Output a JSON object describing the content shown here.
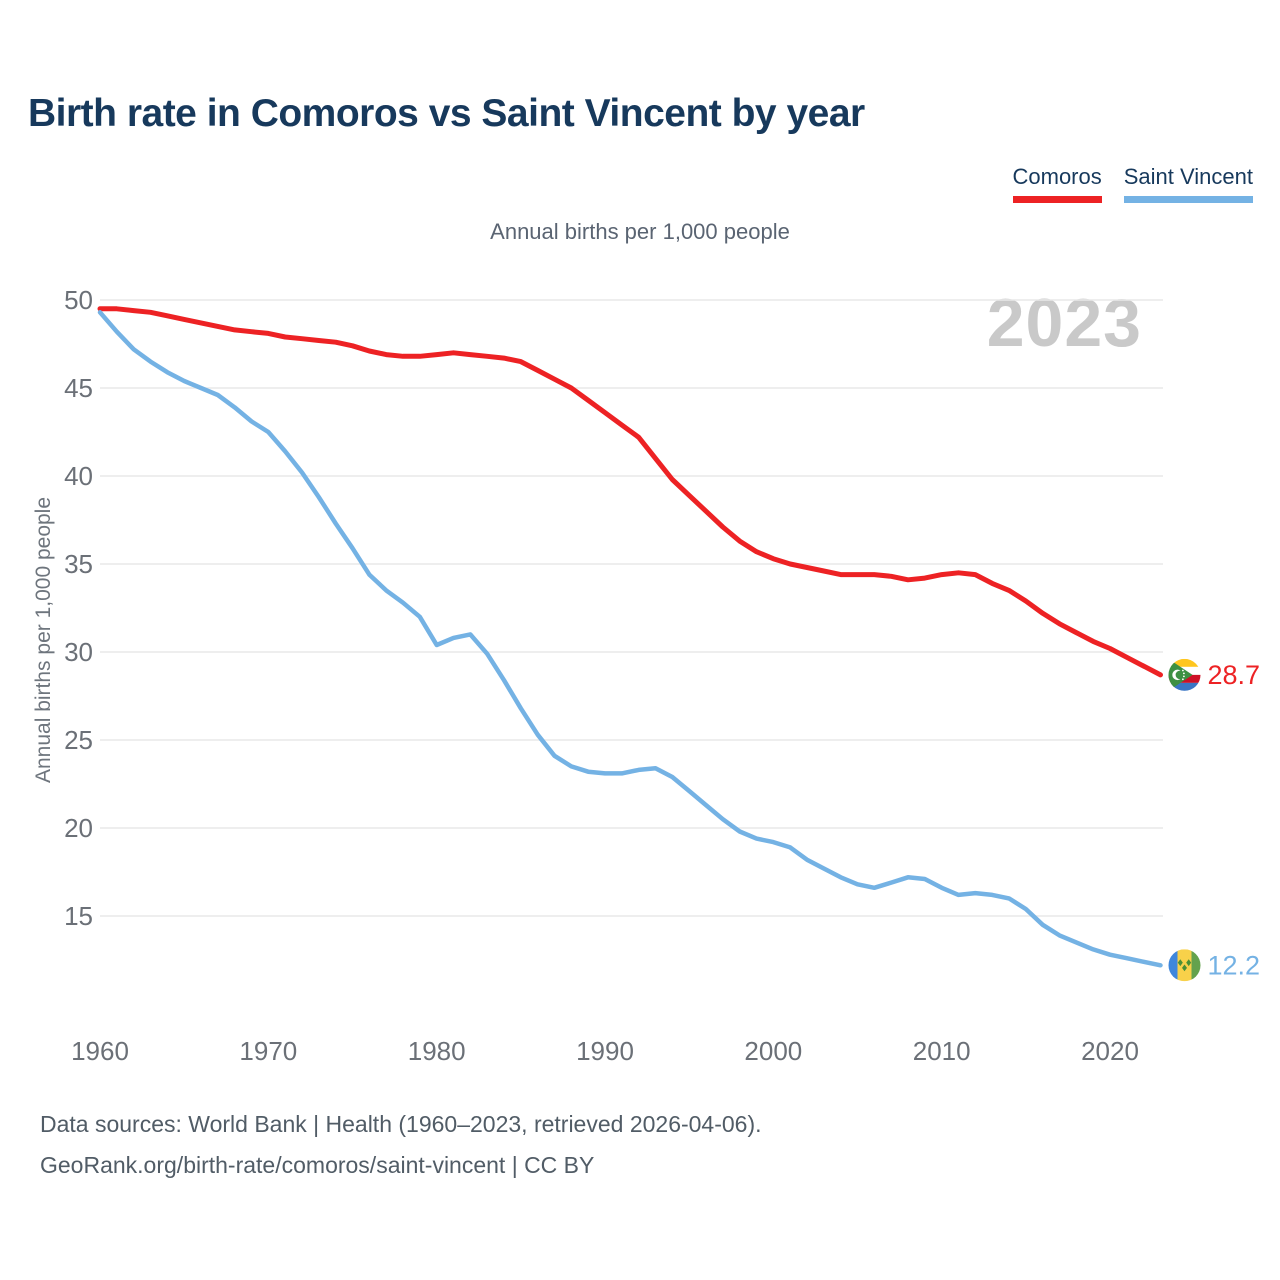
{
  "header": {
    "title": "Birth rate in Comoros vs Saint Vincent by year"
  },
  "legend": [
    {
      "label": "Comoros",
      "color": "#ED2224"
    },
    {
      "label": "Saint Vincent",
      "color": "#74B2E4"
    }
  ],
  "subtitle": "Annual births per 1,000 people",
  "watermark": "2023",
  "chart_data": {
    "type": "line",
    "title": "Annual births per 1,000 people",
    "xlabel": "",
    "ylabel": "Annual births per 1,000 people",
    "x_ticks": [
      1960,
      1970,
      1980,
      1990,
      2000,
      2010,
      2020
    ],
    "y_ticks": [
      15,
      20,
      25,
      30,
      35,
      40,
      45,
      50
    ],
    "xlim": [
      1960,
      2023
    ],
    "ylim": [
      12,
      50
    ],
    "grid": "horizontal",
    "legend_position": "top-right",
    "x": [
      1960,
      1961,
      1962,
      1963,
      1964,
      1965,
      1966,
      1967,
      1968,
      1969,
      1970,
      1971,
      1972,
      1973,
      1974,
      1975,
      1976,
      1977,
      1978,
      1979,
      1980,
      1981,
      1982,
      1983,
      1984,
      1985,
      1986,
      1987,
      1988,
      1989,
      1990,
      1991,
      1992,
      1993,
      1994,
      1995,
      1996,
      1997,
      1998,
      1999,
      2000,
      2001,
      2002,
      2003,
      2004,
      2005,
      2006,
      2007,
      2008,
      2009,
      2010,
      2011,
      2012,
      2013,
      2014,
      2015,
      2016,
      2017,
      2018,
      2019,
      2020,
      2021,
      2022,
      2023
    ],
    "series": [
      {
        "name": "Comoros",
        "color": "#ED2224",
        "end_label": "28.7",
        "values": [
          49.5,
          49.5,
          49.4,
          49.3,
          49.1,
          48.9,
          48.7,
          48.5,
          48.3,
          48.2,
          48.1,
          47.9,
          47.8,
          47.7,
          47.6,
          47.4,
          47.1,
          46.9,
          46.8,
          46.8,
          46.9,
          47.0,
          46.9,
          46.8,
          46.7,
          46.5,
          46.0,
          45.5,
          45.0,
          44.3,
          43.6,
          42.9,
          42.2,
          41.0,
          39.8,
          38.9,
          38.0,
          37.1,
          36.3,
          35.7,
          35.3,
          35.0,
          34.8,
          34.6,
          34.4,
          34.4,
          34.4,
          34.3,
          34.1,
          34.2,
          34.4,
          34.5,
          34.4,
          33.9,
          33.5,
          32.9,
          32.2,
          31.6,
          31.1,
          30.6,
          30.2,
          29.7,
          29.2,
          28.7
        ]
      },
      {
        "name": "Saint Vincent",
        "color": "#74B2E4",
        "end_label": "12.2",
        "values": [
          49.3,
          48.2,
          47.2,
          46.5,
          45.9,
          45.4,
          45.0,
          44.6,
          43.9,
          43.1,
          42.5,
          41.4,
          40.2,
          38.8,
          37.3,
          35.9,
          34.4,
          33.5,
          32.8,
          32.0,
          30.4,
          30.8,
          31.0,
          29.9,
          28.4,
          26.8,
          25.3,
          24.1,
          23.5,
          23.2,
          23.1,
          23.1,
          23.3,
          23.4,
          22.9,
          22.1,
          21.3,
          20.5,
          19.8,
          19.4,
          19.2,
          18.9,
          18.2,
          17.7,
          17.2,
          16.8,
          16.6,
          16.9,
          17.2,
          17.1,
          16.6,
          16.2,
          16.3,
          16.2,
          16.0,
          15.4,
          14.5,
          13.9,
          13.5,
          13.1,
          12.8,
          12.6,
          12.4,
          12.2
        ]
      }
    ]
  },
  "footer": {
    "line1": "Data sources: World Bank | Health (1960–2023, retrieved 2026-04-06).",
    "line2": "GeoRank.org/birth-rate/comoros/saint-vincent | CC BY"
  }
}
